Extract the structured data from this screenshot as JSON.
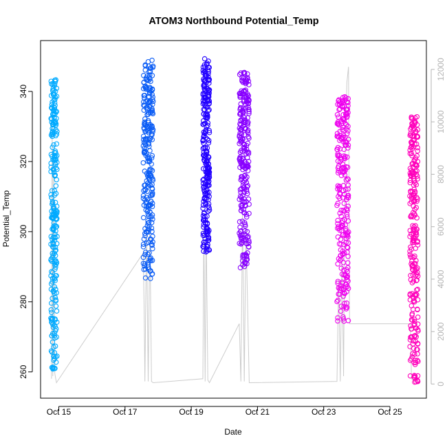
{
  "chart_data": {
    "type": "scatter",
    "title": "ATOM3 Northbound Potential_Temp",
    "xlabel": "Date",
    "ylabel": "Potential_Temp",
    "xlim": [
      14.45,
      26.1
    ],
    "ylim": [
      252.5,
      354.5
    ],
    "y2lim": [
      -540,
      13100
    ],
    "x_tick_labels": [
      "Oct 15",
      "Oct 17",
      "Oct 19",
      "Oct 21",
      "Oct 23",
      "Oct 25"
    ],
    "x_tick_values": [
      15,
      17,
      19,
      21,
      23,
      25
    ],
    "y_ticks": [
      260,
      280,
      300,
      320,
      340
    ],
    "y2_ticks": [
      0,
      2000,
      4000,
      6000,
      8000,
      10000,
      12000
    ],
    "grid": false,
    "colors": {
      "line": "#cccccc",
      "right_axis": "#b3b3b3",
      "point_gradient": [
        "#00aaff",
        "#0a5cf5",
        "#2200ff",
        "#8800ff",
        "#ee00ee",
        "#ff00bb"
      ]
    },
    "series": [
      {
        "type": "points",
        "bursts": [
          {
            "x": [
              14.76,
              14.95
            ],
            "y_range": [
              260,
              343.5
            ]
          },
          {
            "x": [
              17.55,
              17.85
            ],
            "y_range": [
              286.5,
              349
            ]
          },
          {
            "x": [
              19.35,
              19.55
            ],
            "y_range": [
              294,
              349.5
            ]
          },
          {
            "x": [
              20.45,
              20.75
            ],
            "y_range": [
              289.5,
              345.5
            ]
          },
          {
            "x": [
              23.4,
              23.75
            ],
            "y_range": [
              274,
              338.5
            ]
          },
          {
            "x": [
              25.6,
              25.85
            ],
            "y_range": [
              256.5,
              333
            ]
          }
        ]
      },
      {
        "type": "line",
        "axis": "right",
        "path": [
          {
            "x": 14.78,
            "y": 200
          },
          {
            "x": 14.8,
            "y": 10200
          },
          {
            "x": 14.82,
            "y": 300
          },
          {
            "x": 14.85,
            "y": 9000
          },
          {
            "x": 14.88,
            "y": 400
          },
          {
            "x": 14.93,
            "y": 50
          },
          {
            "x": 17.55,
            "y": 5000
          },
          {
            "x": 17.58,
            "y": 2700
          },
          {
            "x": 17.6,
            "y": 100
          },
          {
            "x": 17.65,
            "y": 6000
          },
          {
            "x": 17.7,
            "y": 100
          },
          {
            "x": 17.75,
            "y": 6000
          },
          {
            "x": 17.8,
            "y": 100
          },
          {
            "x": 17.85,
            "y": 50
          },
          {
            "x": 19.35,
            "y": 200
          },
          {
            "x": 19.38,
            "y": 6000
          },
          {
            "x": 19.42,
            "y": 100
          },
          {
            "x": 19.45,
            "y": 6000
          },
          {
            "x": 19.5,
            "y": 150
          },
          {
            "x": 19.55,
            "y": 50
          },
          {
            "x": 20.45,
            "y": 2300
          },
          {
            "x": 20.5,
            "y": 100
          },
          {
            "x": 20.55,
            "y": 6500
          },
          {
            "x": 20.6,
            "y": 100
          },
          {
            "x": 20.65,
            "y": 6000
          },
          {
            "x": 20.75,
            "y": 50
          },
          {
            "x": 23.4,
            "y": 100
          },
          {
            "x": 23.45,
            "y": 4000
          },
          {
            "x": 23.5,
            "y": 100
          },
          {
            "x": 23.55,
            "y": 5000
          },
          {
            "x": 23.6,
            "y": 300
          },
          {
            "x": 23.65,
            "y": 9000
          },
          {
            "x": 23.7,
            "y": 11500
          },
          {
            "x": 23.75,
            "y": 12100
          },
          {
            "x": 23.78,
            "y": 2300
          },
          {
            "x": 25.62,
            "y": 2300
          },
          {
            "x": 25.65,
            "y": 200
          },
          {
            "x": 25.75,
            "y": 100
          }
        ]
      }
    ]
  }
}
